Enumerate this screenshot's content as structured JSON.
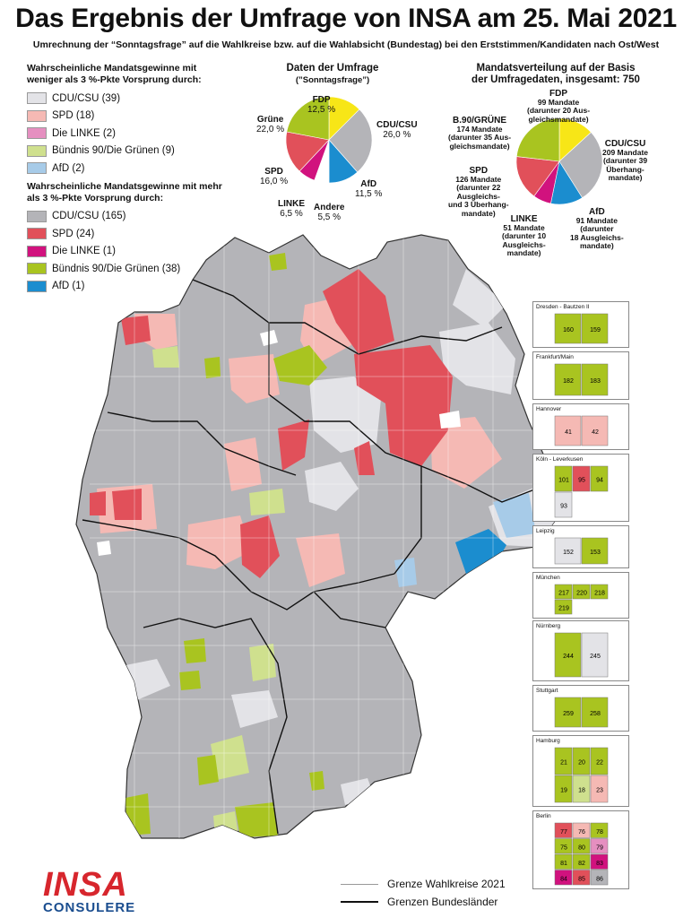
{
  "title": "Das Ergebnis der Umfrage von INSA am 25. Mai 2021",
  "subtitle": "Umrechnung der “Sonntagsfrage” auf die Wahlkreise bzw. auf die Wahlabsicht (Bundestag) bei den Erststimmen/Kandidaten nach Ost/West",
  "colors": {
    "cdu_light": "#e3e3e7",
    "spd_light": "#f5b9b4",
    "linke_light": "#e58fc0",
    "gruene_light": "#cfe08e",
    "afd_light": "#a7cbe8",
    "cdu": "#b4b4b8",
    "spd": "#e1505a",
    "linke": "#d1127e",
    "gruene": "#a9c420",
    "afd": "#1b8dcf",
    "fdp": "#f7e617"
  },
  "legend": {
    "head_weak": "Wahrscheinliche Mandatsgewinne mit weniger als 3 %-Pkte Vorsprung durch:",
    "weak": [
      {
        "label": "CDU/CSU (39)",
        "color": "#e3e3e7"
      },
      {
        "label": "SPD (18)",
        "color": "#f5b9b4"
      },
      {
        "label": "Die LINKE (2)",
        "color": "#e58fc0"
      },
      {
        "label": "Bündnis 90/Die Grünen (9)",
        "color": "#cfe08e"
      },
      {
        "label": "AfD (2)",
        "color": "#a7cbe8"
      }
    ],
    "head_strong": "Wahrscheinliche Mandatsgewinne mit mehr als 3 %-Pkte Vorsprung durch:",
    "strong": [
      {
        "label": "CDU/CSU (165)",
        "color": "#b4b4b8"
      },
      {
        "label": "SPD (24)",
        "color": "#e1505a"
      },
      {
        "label": "Die LINKE (1)",
        "color": "#d1127e"
      },
      {
        "label": "Bündnis 90/Die Grünen (38)",
        "color": "#a9c420"
      },
      {
        "label": "AfD (1)",
        "color": "#1b8dcf"
      }
    ]
  },
  "poll": {
    "title_1": "Daten der Umfrage",
    "title_2": "(”Sonntagsfrage”)",
    "slices": [
      {
        "party": "FDP",
        "value": 12.5,
        "label": "12,5 %",
        "color": "#f7e617"
      },
      {
        "party": "CDU/CSU",
        "value": 26.0,
        "label": "26,0 %",
        "color": "#b4b4b8"
      },
      {
        "party": "AfD",
        "value": 11.5,
        "label": "11,5 %",
        "color": "#1b8dcf"
      },
      {
        "party": "Andere",
        "value": 5.5,
        "label": "5,5 %",
        "color": "#ffffff"
      },
      {
        "party": "LINKE",
        "value": 6.5,
        "label": "6,5 %",
        "color": "#d1127e"
      },
      {
        "party": "SPD",
        "value": 16.0,
        "label": "16,0 %",
        "color": "#e1505a"
      },
      {
        "party": "Grüne",
        "value": 22.0,
        "label": "22,0 %",
        "color": "#a9c420"
      }
    ]
  },
  "seats": {
    "title_1": "Mandatsverteilung auf der Basis",
    "title_2": "der Umfragedaten, insgesamt: 750",
    "slices": [
      {
        "party": "FDP",
        "value": 99,
        "color": "#f7e617",
        "lines": [
          "99 Mandate",
          "(darunter 20 Aus-",
          "gleichsmandate)"
        ]
      },
      {
        "party": "CDU/CSU",
        "value": 209,
        "color": "#b4b4b8",
        "lines": [
          "209 Mandate",
          "(darunter 39",
          "Überhang-",
          "mandate)"
        ]
      },
      {
        "party": "AfD",
        "value": 91,
        "color": "#1b8dcf",
        "lines": [
          "91 Mandate",
          "(darunter",
          "18 Ausgleichs-",
          "mandate)"
        ]
      },
      {
        "party": "LINKE",
        "value": 51,
        "color": "#d1127e",
        "lines": [
          "51 Mandate",
          "(darunter 10",
          "Ausgleichs-",
          "mandate)"
        ]
      },
      {
        "party": "SPD",
        "value": 126,
        "color": "#e1505a",
        "lines": [
          "126 Mandate",
          "(darunter 22",
          "Ausgleichs-",
          "und 3 Überhang-",
          "mandate)"
        ]
      },
      {
        "party": "B.90/GRÜNE",
        "value": 174,
        "color": "#a9c420",
        "lines": [
          "174 Mandate",
          "(darunter 35 Aus-",
          "gleichsmandate)"
        ]
      }
    ]
  },
  "insets": [
    {
      "name": "Dresden - Bautzen II",
      "numbers": [
        "160",
        "159"
      ]
    },
    {
      "name": "Frankfurt/Main",
      "numbers": [
        "182",
        "183"
      ]
    },
    {
      "name": "Hannover",
      "numbers": [
        "41",
        "42"
      ]
    },
    {
      "name": "Köln - Leverkusen",
      "numbers": [
        "101",
        "95",
        "94",
        "93"
      ]
    },
    {
      "name": "Leipzig",
      "numbers": [
        "152",
        "153"
      ]
    },
    {
      "name": "München",
      "numbers": [
        "217",
        "220",
        "218",
        "219"
      ]
    },
    {
      "name": "Nürnberg",
      "numbers": [
        "244",
        "245"
      ]
    },
    {
      "name": "Stuttgart",
      "numbers": [
        "259",
        "258"
      ]
    },
    {
      "name": "Hamburg",
      "numbers": [
        "21",
        "20",
        "22",
        "19",
        "18",
        "23"
      ]
    },
    {
      "name": "Berlin",
      "numbers": [
        "77",
        "76",
        "78",
        "75",
        "80",
        "79",
        "81",
        "82",
        "83",
        "84",
        "85",
        "86"
      ]
    }
  ],
  "map_legend": {
    "wahlkreise": "Grenze Wahlkreise 2021",
    "laender": "Grenzen Bundesländer"
  },
  "logo": {
    "line1": "INSA",
    "line2": "CONSULERE"
  }
}
